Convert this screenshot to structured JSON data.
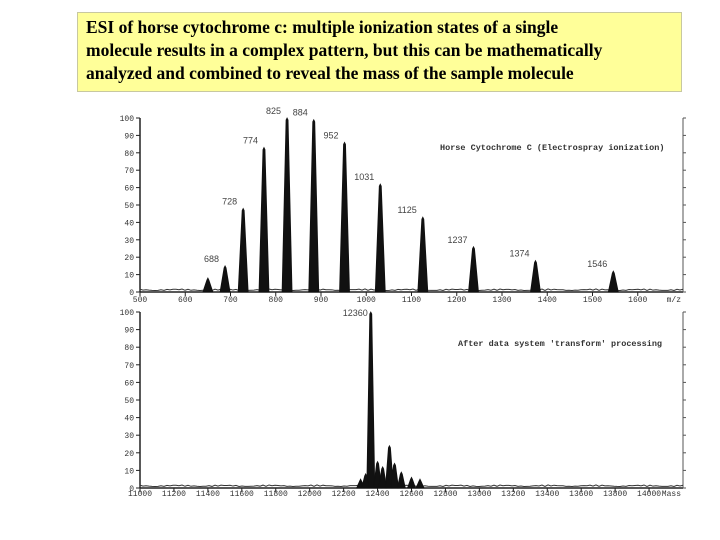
{
  "caption": {
    "line1": "ESI of horse cytochrome c:  multiple ionization states of a single",
    "line2": "molecule results in a complex pattern, but this can be mathematically",
    "line3": "analyzed and combined to reveal the mass of the sample molecule"
  },
  "chart_data": [
    {
      "type": "line",
      "title": "Horse Cytochrome C (Electrospray ionization)",
      "xlabel": "m/z",
      "ylabel": "",
      "xlim": [
        500,
        1700
      ],
      "ylim": [
        0,
        100
      ],
      "x_ticks": [
        "500",
        "600",
        "700",
        "800",
        "900",
        "1000",
        "1100",
        "1200",
        "1300",
        "1400",
        "1500",
        "1600",
        "m/z"
      ],
      "y_ticks": [
        "0",
        "10",
        "20",
        "30",
        "40",
        "50",
        "60",
        "70",
        "80",
        "90",
        "100"
      ],
      "peaks": [
        {
          "mz": 650,
          "label": "",
          "intensity": 8
        },
        {
          "mz": 688,
          "label": "688",
          "intensity": 15
        },
        {
          "mz": 728,
          "label": "728",
          "intensity": 48
        },
        {
          "mz": 774,
          "label": "774",
          "intensity": 83
        },
        {
          "mz": 825,
          "label": "825",
          "intensity": 100
        },
        {
          "mz": 884,
          "label": "884",
          "intensity": 99
        },
        {
          "mz": 952,
          "label": "952",
          "intensity": 86
        },
        {
          "mz": 1031,
          "label": "1031",
          "intensity": 62
        },
        {
          "mz": 1125,
          "label": "1125",
          "intensity": 43
        },
        {
          "mz": 1237,
          "label": "1237",
          "intensity": 26
        },
        {
          "mz": 1374,
          "label": "1374",
          "intensity": 18
        },
        {
          "mz": 1546,
          "label": "1546",
          "intensity": 12
        }
      ]
    },
    {
      "type": "line",
      "title": "After data system 'transform' processing",
      "xlabel": "Mass",
      "ylabel": "",
      "xlim": [
        11000,
        14200
      ],
      "ylim": [
        0,
        100
      ],
      "x_ticks": [
        "11000",
        "11200",
        "11400",
        "11600",
        "11800",
        "12000",
        "12200",
        "12400",
        "12600",
        "12800",
        "13000",
        "13200",
        "13400",
        "13600",
        "13800",
        "14000",
        "Mass"
      ],
      "x_ticks_display": [
        "11000",
        "11200",
        "11400",
        "11600",
        "11800",
        "12000",
        "12200",
        "12400",
        "12600",
        "12800",
        "13000",
        "13200",
        "13400",
        "13600",
        "13800",
        "14000",
        "Mass"
      ],
      "y_ticks": [
        "0",
        "10",
        "20",
        "30",
        "40",
        "50",
        "60",
        "70",
        "80",
        "90",
        "100"
      ],
      "peaks": [
        {
          "mass": 12360,
          "label": "12360",
          "intensity": 100
        },
        {
          "mass": 12300,
          "label": "",
          "intensity": 5
        },
        {
          "mass": 12330,
          "label": "",
          "intensity": 8
        },
        {
          "mass": 12400,
          "label": "",
          "intensity": 15
        },
        {
          "mass": 12430,
          "label": "",
          "intensity": 12
        },
        {
          "mass": 12470,
          "label": "",
          "intensity": 24
        },
        {
          "mass": 12500,
          "label": "",
          "intensity": 14
        },
        {
          "mass": 12540,
          "label": "",
          "intensity": 9
        },
        {
          "mass": 12600,
          "label": "",
          "intensity": 6
        },
        {
          "mass": 12650,
          "label": "",
          "intensity": 5
        }
      ]
    }
  ]
}
